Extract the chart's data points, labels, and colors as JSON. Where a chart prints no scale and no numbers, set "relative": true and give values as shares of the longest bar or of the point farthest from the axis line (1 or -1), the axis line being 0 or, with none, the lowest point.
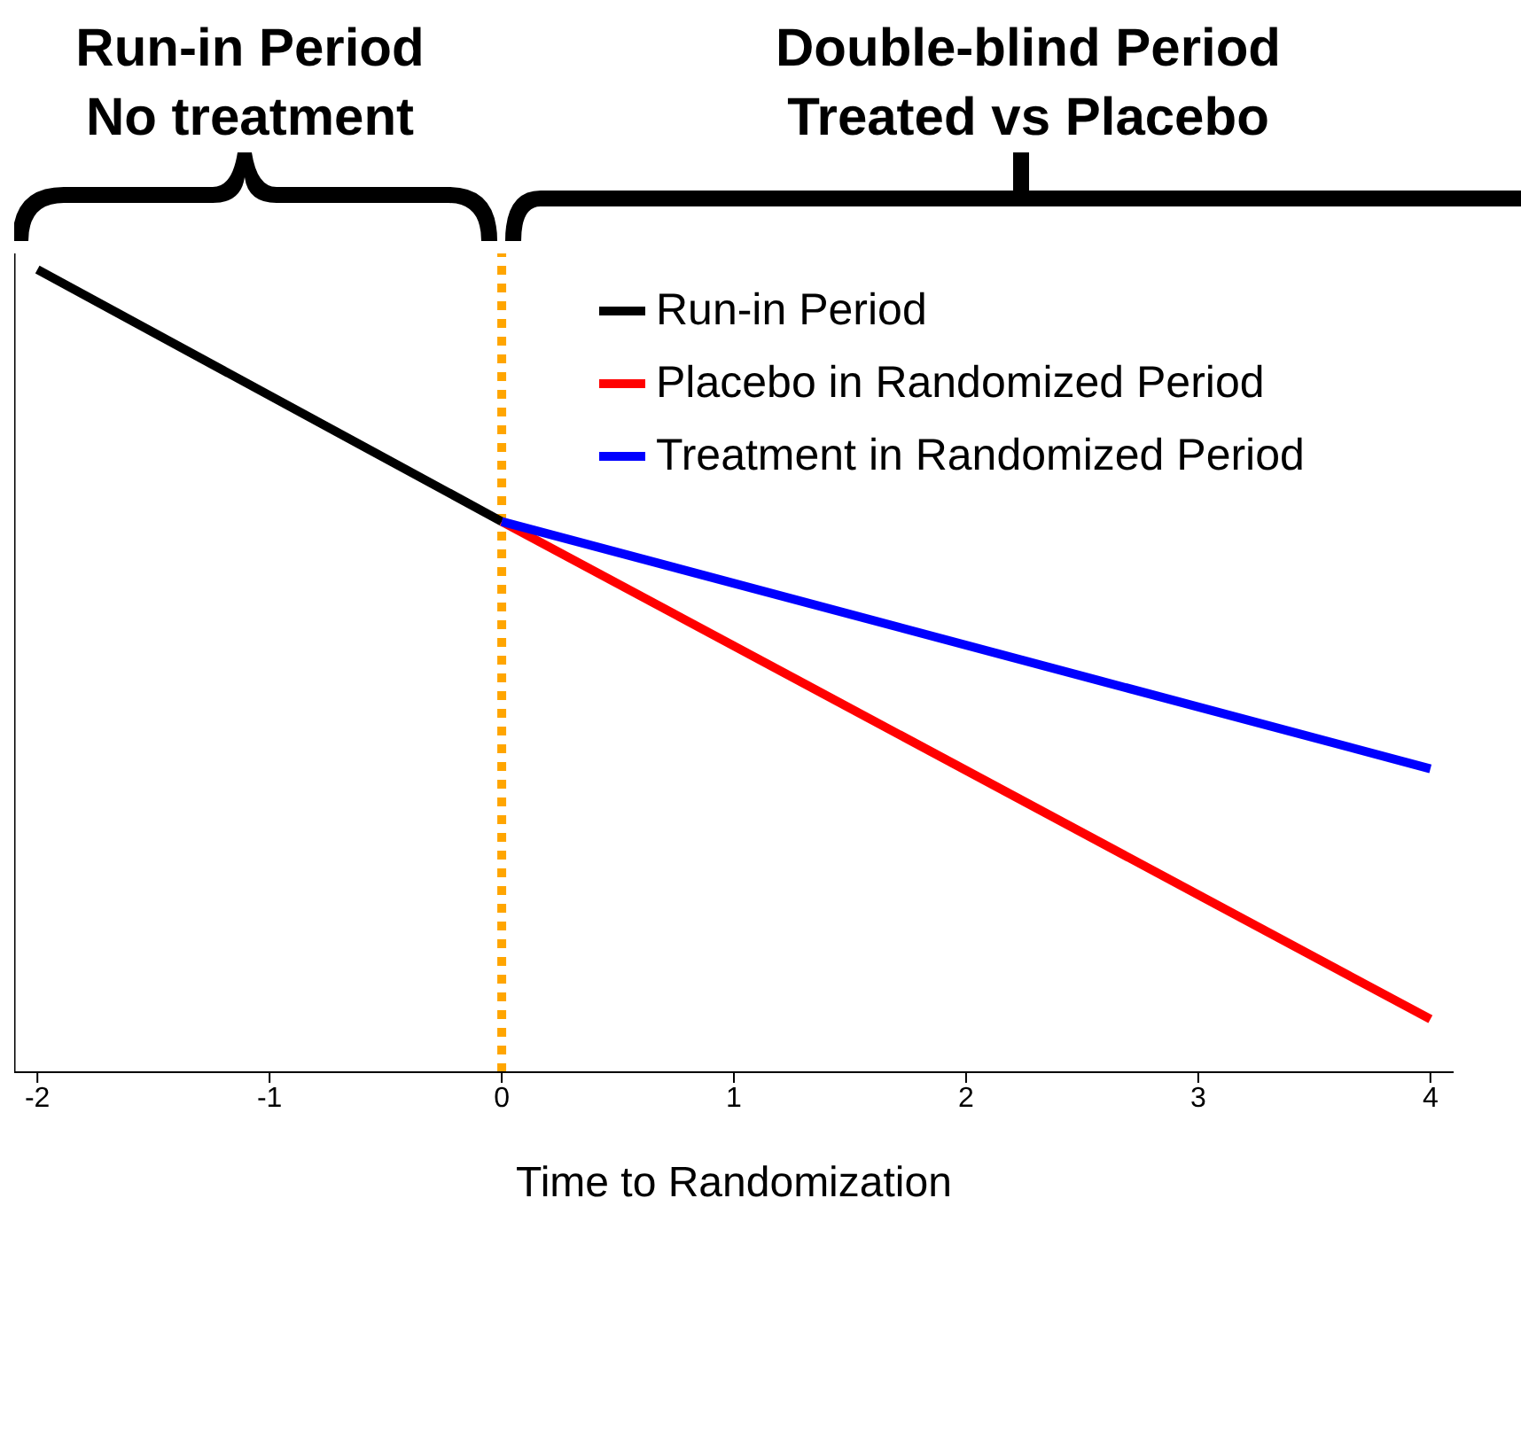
{
  "chart_data": {
    "type": "line",
    "xlabel": "Time to Randomization",
    "relative": true,
    "annotations": [
      "Run-in Period No treatment",
      "Double-blind Period Treated vs Placebo"
    ],
    "xlim": [
      -2.1,
      4.1
    ],
    "xticks": [
      -2,
      -1,
      0,
      1,
      2,
      3,
      4
    ],
    "series": [
      {
        "name": "Run-in Period",
        "color": "#000000",
        "x": [
          -2,
          0
        ],
        "values": [
          1,
          0.686
        ]
      },
      {
        "name": "Placebo in Randomized Period",
        "color": "#ff0000",
        "x": [
          0,
          4
        ],
        "values": [
          0.686,
          0.066
        ]
      },
      {
        "name": "Treatment in Randomized Period",
        "color": "#0000ff",
        "x": [
          0,
          4
        ],
        "values": [
          0.686,
          0.378
        ]
      }
    ],
    "ref_lines": [
      {
        "axis": "x",
        "value": 0,
        "color": "#ffa500",
        "line_style": "dotted"
      }
    ],
    "legend": "top right",
    "grid": false,
    "marker": "none",
    "line_style": "solid"
  }
}
